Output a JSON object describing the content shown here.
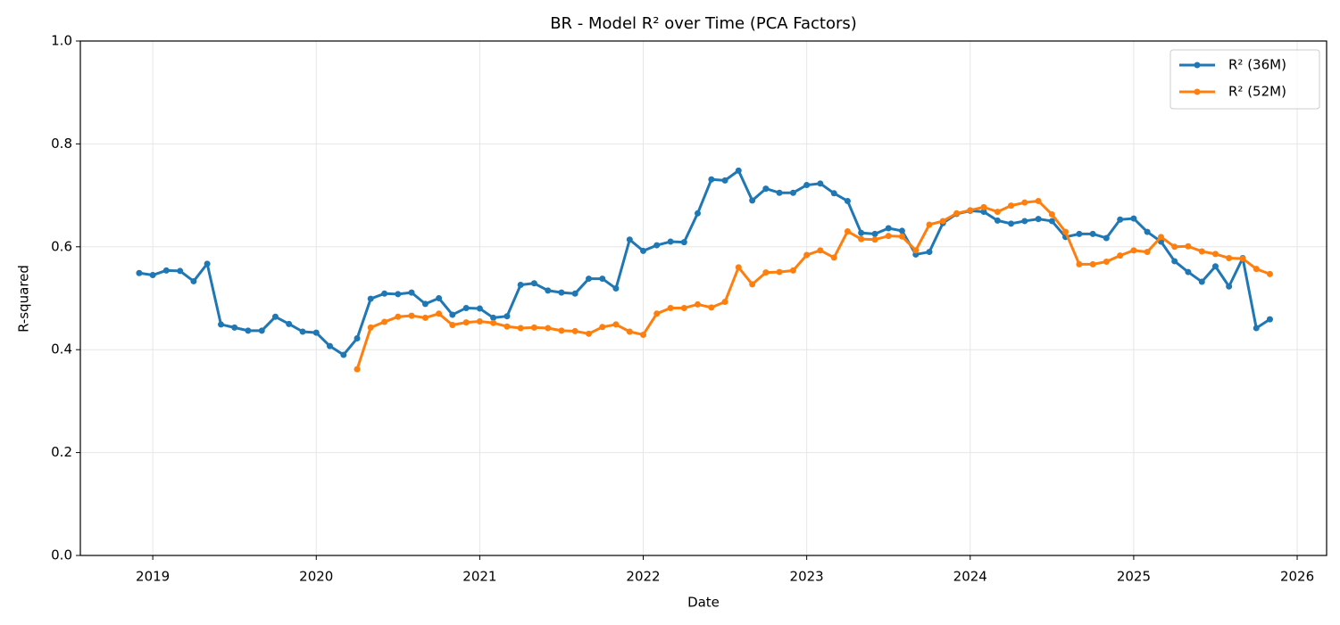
{
  "chart_data": {
    "type": "line",
    "title": "BR - Model R² over Time (PCA Factors)",
    "x_label": "Date",
    "y_label": "R-squared",
    "x": [
      2018.917,
      2019.0,
      2019.083,
      2019.167,
      2019.25,
      2019.333,
      2019.417,
      2019.5,
      2019.583,
      2019.667,
      2019.75,
      2019.833,
      2019.917,
      2020.0,
      2020.083,
      2020.167,
      2020.25,
      2020.333,
      2020.417,
      2020.5,
      2020.583,
      2020.667,
      2020.75,
      2020.833,
      2020.917,
      2021.0,
      2021.083,
      2021.167,
      2021.25,
      2021.333,
      2021.417,
      2021.5,
      2021.583,
      2021.667,
      2021.75,
      2021.833,
      2021.917,
      2022.0,
      2022.083,
      2022.167,
      2022.25,
      2022.333,
      2022.417,
      2022.5,
      2022.583,
      2022.667,
      2022.75,
      2022.833,
      2022.917,
      2023.0,
      2023.083,
      2023.167,
      2023.25,
      2023.333,
      2023.417,
      2023.5,
      2023.583,
      2023.667,
      2023.75,
      2023.833,
      2023.917,
      2024.0,
      2024.083,
      2024.167,
      2024.25,
      2024.333,
      2024.417,
      2024.5,
      2024.583,
      2024.667,
      2024.75,
      2024.833,
      2024.917,
      2025.0,
      2025.083,
      2025.167,
      2025.25,
      2025.333,
      2025.417,
      2025.5,
      2025.583,
      2025.667,
      2025.75,
      2025.833
    ],
    "series": [
      {
        "name": "R² (36M)",
        "color": "#1f77b4",
        "values": [
          0.549,
          0.545,
          0.554,
          0.553,
          0.533,
          0.567,
          0.449,
          0.443,
          0.437,
          0.437,
          0.464,
          0.45,
          0.435,
          0.433,
          0.407,
          0.39,
          0.422,
          0.499,
          0.509,
          0.508,
          0.511,
          0.489,
          0.5,
          0.468,
          0.481,
          0.48,
          0.462,
          0.465,
          0.526,
          0.529,
          0.515,
          0.511,
          0.509,
          0.538,
          0.538,
          0.519,
          0.614,
          0.592,
          0.603,
          0.61,
          0.609,
          0.665,
          0.731,
          0.729,
          0.748,
          0.69,
          0.713,
          0.705,
          0.705,
          0.72,
          0.723,
          0.704,
          0.689,
          0.627,
          0.625,
          0.636,
          0.631,
          0.585,
          0.59,
          0.646,
          0.664,
          0.67,
          0.668,
          0.651,
          0.645,
          0.65,
          0.654,
          0.65,
          0.619,
          0.625,
          0.625,
          0.617,
          0.653,
          0.655,
          0.629,
          0.61,
          0.572,
          0.551,
          0.532,
          0.562,
          0.523,
          0.578,
          0.442,
          0.459
        ]
      },
      {
        "name": "R² (52M)",
        "color": "#ff7f0e",
        "values": [
          null,
          null,
          null,
          null,
          null,
          null,
          null,
          null,
          null,
          null,
          null,
          null,
          null,
          null,
          null,
          null,
          0.362,
          0.443,
          0.454,
          0.464,
          0.466,
          0.462,
          0.47,
          0.448,
          0.453,
          0.455,
          0.452,
          0.445,
          0.442,
          0.443,
          0.442,
          0.437,
          0.436,
          0.431,
          0.444,
          0.449,
          0.435,
          0.429,
          0.47,
          0.481,
          0.481,
          0.488,
          0.482,
          0.493,
          0.56,
          0.527,
          0.55,
          0.551,
          0.554,
          0.584,
          0.593,
          0.579,
          0.63,
          0.615,
          0.614,
          0.621,
          0.62,
          0.593,
          0.643,
          0.65,
          0.665,
          0.671,
          0.677,
          0.668,
          0.68,
          0.686,
          0.689,
          0.663,
          0.629,
          0.566,
          0.566,
          0.571,
          0.583,
          0.593,
          0.59,
          0.619,
          0.6,
          0.601,
          0.591,
          0.586,
          0.578,
          0.577,
          0.557,
          0.547
        ]
      }
    ],
    "xlim": [
      2018.557,
      2026.18
    ],
    "xticks": [
      2019,
      2020,
      2021,
      2022,
      2023,
      2024,
      2025,
      2026
    ],
    "ylim": [
      0,
      1
    ],
    "yticks": [
      {
        "value": 0,
        "label": "0.0"
      },
      0.2,
      0.4,
      0.6,
      0.8,
      {
        "value": 1,
        "label": "1.0"
      }
    ],
    "grid": true,
    "legend": "upper right"
  }
}
